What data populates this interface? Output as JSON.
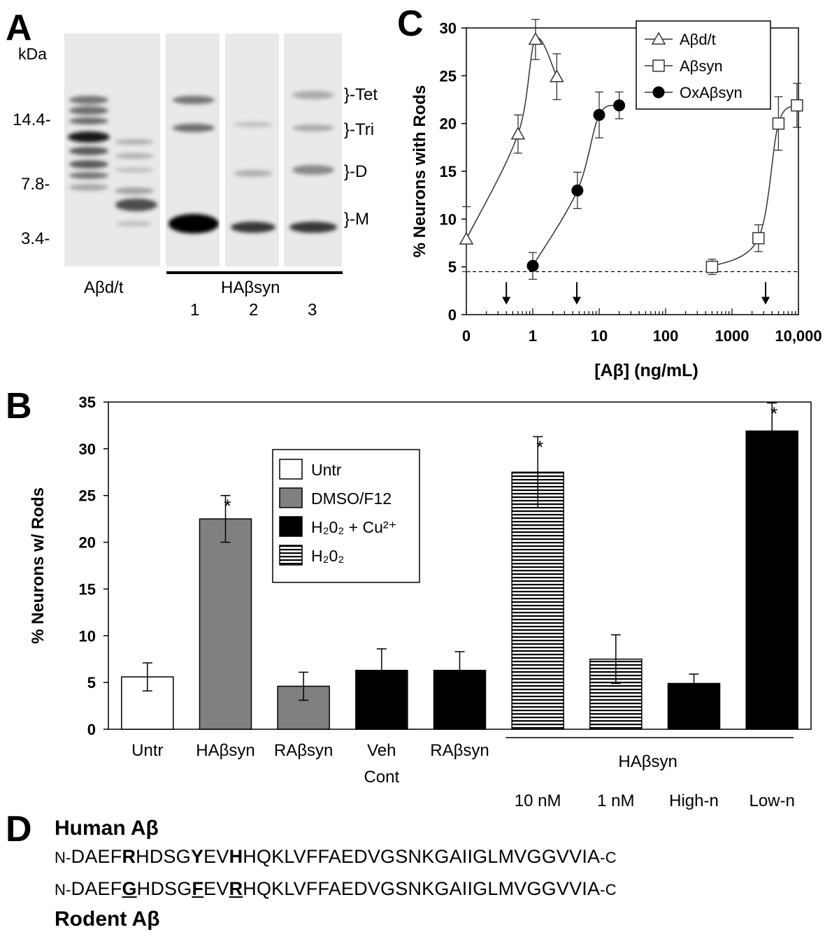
{
  "panelA": {
    "letter": "A",
    "kda_label": "kDa",
    "markers": [
      "14.4-",
      "7.8-",
      "3.4-"
    ],
    "band_labels": [
      "}-Tet",
      "}-Tri",
      "}-D",
      "}-M"
    ],
    "lane_group_1": "Aβd/t",
    "lane_group_2": "HAβsyn",
    "lane_numbers": [
      "1",
      "2",
      "3"
    ]
  },
  "panelB": {
    "letter": "B",
    "legend": [
      {
        "label": "Untr",
        "fill": "white"
      },
      {
        "label": "DMSO/F12",
        "fill": "gray"
      },
      {
        "label": "H₂0₂ + Cu²⁺",
        "fill": "black"
      },
      {
        "label": "H₂0₂",
        "fill": "hatched"
      }
    ],
    "group_label": "HAβsyn"
  },
  "panelC": {
    "letter": "C"
  },
  "panelD": {
    "letter": "D",
    "human_title": "Human Aβ",
    "rodent_title": "Rodent Aβ",
    "n_term": "N-",
    "c_term": "-C",
    "human_seq": [
      {
        "t": "DAEF",
        "b": false,
        "u": false
      },
      {
        "t": "R",
        "b": true,
        "u": false
      },
      {
        "t": "HDSG",
        "b": false,
        "u": false
      },
      {
        "t": "Y",
        "b": true,
        "u": false
      },
      {
        "t": "EV",
        "b": false,
        "u": false
      },
      {
        "t": "H",
        "b": true,
        "u": false
      },
      {
        "t": "HQKLVFFAEDVGSNKGAIIGLMVGGVVIA",
        "b": false,
        "u": false
      }
    ],
    "rodent_seq": [
      {
        "t": "DAEF",
        "b": false,
        "u": false
      },
      {
        "t": "G",
        "b": true,
        "u": true
      },
      {
        "t": "HDSG",
        "b": false,
        "u": false
      },
      {
        "t": "F",
        "b": true,
        "u": true
      },
      {
        "t": "EV",
        "b": false,
        "u": false
      },
      {
        "t": "R",
        "b": true,
        "u": true
      },
      {
        "t": "HQKLVFFAEDVGSNKGAIIGLMVGGVVIA",
        "b": false,
        "u": false
      }
    ]
  },
  "chart_data": [
    {
      "type": "bar",
      "ylabel": "% Neurons w/ Rods",
      "ylim": [
        0,
        35
      ],
      "yticks": [
        0,
        5,
        10,
        15,
        20,
        25,
        30,
        35
      ],
      "categories": [
        "Untr",
        "HAβsyn",
        "RAβsyn",
        "Veh Cont",
        "RAβsyn",
        "10 nM",
        "1 nM",
        "High-n",
        "Low-n"
      ],
      "values": [
        5.6,
        22.5,
        4.6,
        6.3,
        6.3,
        27.5,
        7.5,
        4.9,
        31.9
      ],
      "errors": [
        1.5,
        2.5,
        1.5,
        2.3,
        2.0,
        3.8,
        2.6,
        1.0,
        3.0
      ],
      "fills": [
        "white",
        "gray",
        "gray",
        "black",
        "black",
        "hatched",
        "hatched",
        "black",
        "black"
      ],
      "significant": [
        false,
        true,
        false,
        false,
        false,
        true,
        false,
        false,
        true
      ],
      "sig_marker": "*",
      "legend_position": "top-center"
    },
    {
      "type": "line",
      "xlabel": "[Aβ] (ng/mL)",
      "ylabel": "% Neurons with Rods",
      "xscale": "log",
      "xlim": [
        0.1,
        10000
      ],
      "ylim": [
        0,
        30
      ],
      "xtick_labels": [
        "0",
        "1",
        "10",
        "100",
        "1000",
        "10,000"
      ],
      "xtick_values": [
        0.1,
        1,
        10,
        100,
        1000,
        10000
      ],
      "yticks": [
        0,
        5,
        10,
        15,
        20,
        25,
        30
      ],
      "baseline": 4.5,
      "arrows_x": [
        0.4,
        4.6,
        3200
      ],
      "legend_position": "top-right",
      "series": [
        {
          "name": "Aβd/t",
          "marker": "triangle",
          "x": [
            0.1,
            0.6,
            1.1,
            2.3
          ],
          "y": [
            7.9,
            18.9,
            28.8,
            24.9
          ],
          "err": [
            3.4,
            2.0,
            2.1,
            2.4
          ]
        },
        {
          "name": "Aβsyn",
          "marker": "square",
          "x": [
            500,
            2500,
            5000,
            9500
          ],
          "y": [
            5.0,
            8.0,
            20.0,
            21.9
          ],
          "err": [
            0.8,
            1.4,
            2.8,
            2.3
          ]
        },
        {
          "name": "OxAβsyn",
          "marker": "circle",
          "x": [
            1.0,
            4.7,
            10,
            20
          ],
          "y": [
            5.1,
            13.0,
            20.9,
            21.9
          ],
          "err": [
            1.4,
            1.9,
            2.4,
            1.4
          ]
        }
      ]
    }
  ]
}
